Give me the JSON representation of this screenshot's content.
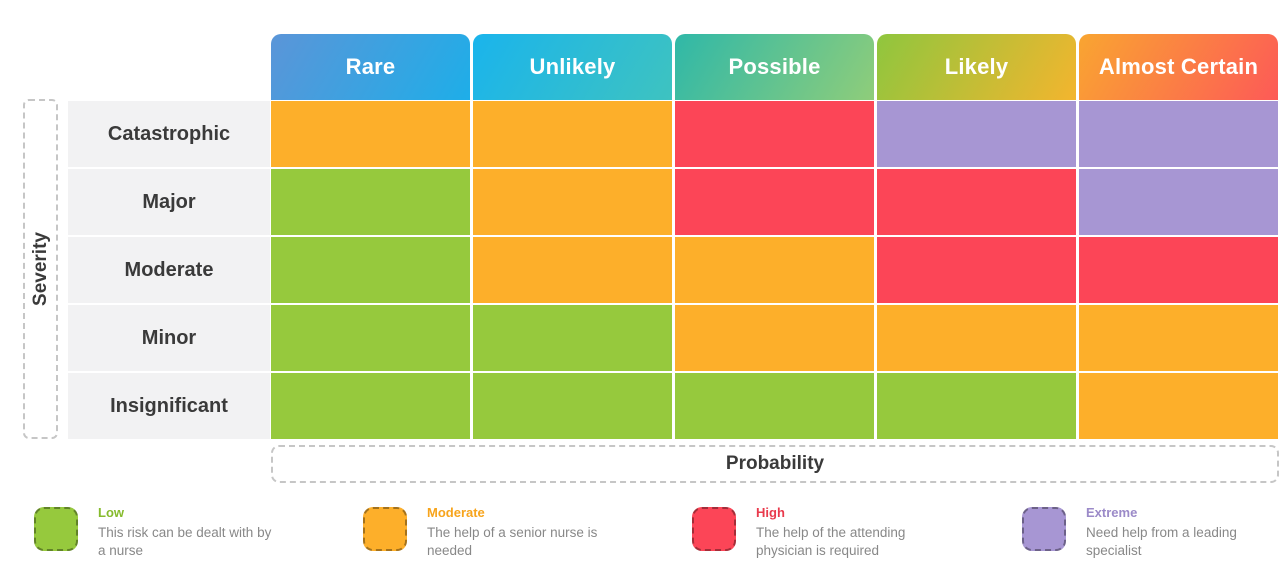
{
  "probability_levels": [
    "Rare",
    "Unlikely",
    "Possible",
    "Likely",
    "Almost Certain"
  ],
  "severity_levels": [
    "Catastrophic",
    "Major",
    "Moderate",
    "Minor",
    "Insignificant"
  ],
  "axes": {
    "severity": "Severity",
    "probability": "Probability"
  },
  "header_gradients": [
    [
      "#5b95d8",
      "#1eaee8"
    ],
    [
      "#1ab4ec",
      "#3ec3c0"
    ],
    [
      "#2fb8a8",
      "#8fcd7a"
    ],
    [
      "#8fc63e",
      "#f3b52e"
    ],
    [
      "#f9a531",
      "#fd5a57"
    ]
  ],
  "matrix": [
    [
      "moderate",
      "moderate",
      "high",
      "extreme",
      "extreme"
    ],
    [
      "low",
      "moderate",
      "high",
      "high",
      "extreme"
    ],
    [
      "low",
      "moderate",
      "moderate",
      "high",
      "high"
    ],
    [
      "low",
      "low",
      "moderate",
      "moderate",
      "moderate"
    ],
    [
      "low",
      "low",
      "low",
      "low",
      "moderate"
    ]
  ],
  "risk_colors": {
    "low": "#96c93d",
    "moderate": "#fdaf2a",
    "high": "#fc4557",
    "extreme": "#a796d3"
  },
  "legend": [
    {
      "key": "low",
      "title": "Low",
      "title_color": "#86bb2d",
      "description": "This risk can be dealt with by a nurse"
    },
    {
      "key": "moderate",
      "title": "Moderate",
      "title_color": "#f7a41c",
      "description": "The help of a senior nurse is needed"
    },
    {
      "key": "high",
      "title": "High",
      "title_color": "#e93a4c",
      "description": "The help of the attending physician is required"
    },
    {
      "key": "extreme",
      "title": "Extreme",
      "title_color": "#9b8ac8",
      "description": "Need help from a leading specialist"
    }
  ]
}
